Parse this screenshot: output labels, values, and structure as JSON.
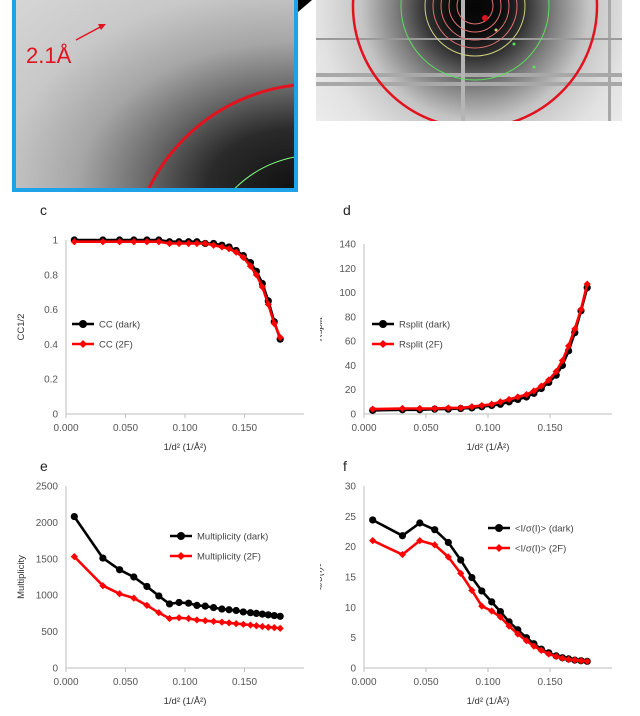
{
  "panel_labels": {
    "c": "c",
    "d": "d",
    "e": "e",
    "f": "f"
  },
  "top_image": {
    "resolution_label": "2.1Å"
  },
  "chart_data": [
    {
      "id": "c",
      "type": "line",
      "title": "",
      "xlabel": "1/d² (1/Å²)",
      "ylabel": "CC1/2",
      "xlim": [
        0,
        0.2
      ],
      "ylim": [
        0,
        1.0
      ],
      "xticks": [
        "0.000",
        "0.050",
        "0.100",
        "0.150"
      ],
      "yticks": [
        "0",
        "0.2",
        "0.4",
        "0.6",
        "0.8",
        "1"
      ],
      "legend_position": "middle-left",
      "series": [
        {
          "name": "CC (dark)",
          "color": "#000000",
          "x": [
            0.007,
            0.031,
            0.045,
            0.057,
            0.068,
            0.078,
            0.087,
            0.095,
            0.103,
            0.11,
            0.117,
            0.124,
            0.131,
            0.137,
            0.143,
            0.149,
            0.155,
            0.16,
            0.165,
            0.17,
            0.175,
            0.18
          ],
          "y": [
            1.0,
            1.0,
            1.0,
            1.0,
            1.0,
            1.0,
            0.99,
            0.99,
            0.99,
            0.99,
            0.98,
            0.98,
            0.97,
            0.96,
            0.94,
            0.91,
            0.87,
            0.82,
            0.75,
            0.65,
            0.53,
            0.43
          ]
        },
        {
          "name": "CC (2F)",
          "color": "#ff0000",
          "x": [
            0.007,
            0.031,
            0.045,
            0.057,
            0.068,
            0.078,
            0.087,
            0.095,
            0.103,
            0.11,
            0.117,
            0.124,
            0.131,
            0.137,
            0.143,
            0.149,
            0.155,
            0.16,
            0.165,
            0.17,
            0.175,
            0.18
          ],
          "y": [
            0.99,
            0.99,
            0.99,
            0.99,
            0.99,
            0.99,
            0.98,
            0.98,
            0.98,
            0.98,
            0.98,
            0.97,
            0.96,
            0.95,
            0.93,
            0.9,
            0.85,
            0.8,
            0.73,
            0.63,
            0.52,
            0.44
          ]
        }
      ]
    },
    {
      "id": "d",
      "type": "line",
      "title": "",
      "xlabel": "1/d² (1/Å²)",
      "ylabel": "Rsplit",
      "xlim": [
        0,
        0.2
      ],
      "ylim": [
        0,
        140
      ],
      "xticks": [
        "0.000",
        "0.050",
        "0.100",
        "0.150"
      ],
      "yticks": [
        "0",
        "20",
        "40",
        "60",
        "80",
        "100",
        "120",
        "140"
      ],
      "legend_position": "middle-left",
      "series": [
        {
          "name": "Rsplit (dark)",
          "color": "#000000",
          "x": [
            0.007,
            0.031,
            0.045,
            0.057,
            0.068,
            0.078,
            0.087,
            0.095,
            0.103,
            0.11,
            0.117,
            0.124,
            0.131,
            0.137,
            0.143,
            0.149,
            0.155,
            0.16,
            0.165,
            0.17,
            0.175,
            0.18
          ],
          "y": [
            3,
            3.5,
            3.5,
            4,
            4,
            4.5,
            5,
            6,
            7,
            8,
            10,
            12,
            14,
            17,
            21,
            26,
            32,
            40,
            52,
            67,
            85,
            104
          ]
        },
        {
          "name": "Rsplit (2F)",
          "color": "#ff0000",
          "x": [
            0.007,
            0.031,
            0.045,
            0.057,
            0.068,
            0.078,
            0.087,
            0.095,
            0.103,
            0.11,
            0.117,
            0.124,
            0.131,
            0.137,
            0.143,
            0.149,
            0.155,
            0.16,
            0.165,
            0.17,
            0.175,
            0.18
          ],
          "y": [
            4,
            4.5,
            4.5,
            4.5,
            5,
            5,
            6,
            7,
            8,
            10,
            12,
            14,
            16,
            19,
            23,
            28,
            35,
            44,
            56,
            70,
            86,
            107
          ]
        }
      ]
    },
    {
      "id": "e",
      "type": "line",
      "title": "",
      "xlabel": "1/d² (1/Å²)",
      "ylabel": "Multiplicity",
      "xlim": [
        0,
        0.2
      ],
      "ylim": [
        0,
        2500
      ],
      "xticks": [
        "0.000",
        "0.050",
        "0.100",
        "0.150"
      ],
      "yticks": [
        "0",
        "500",
        "1000",
        "1500",
        "2000",
        "2500"
      ],
      "legend_position": "top-right",
      "series": [
        {
          "name": "Multiplicity (dark)",
          "color": "#000000",
          "x": [
            0.007,
            0.031,
            0.045,
            0.057,
            0.068,
            0.078,
            0.087,
            0.095,
            0.103,
            0.11,
            0.117,
            0.124,
            0.131,
            0.137,
            0.143,
            0.149,
            0.155,
            0.16,
            0.165,
            0.17,
            0.175,
            0.18
          ],
          "y": [
            2080,
            1510,
            1350,
            1250,
            1120,
            990,
            880,
            900,
            890,
            860,
            850,
            830,
            810,
            800,
            790,
            770,
            760,
            750,
            740,
            730,
            720,
            710
          ]
        },
        {
          "name": "Multiplicity (2F)",
          "color": "#ff0000",
          "x": [
            0.007,
            0.031,
            0.045,
            0.057,
            0.068,
            0.078,
            0.087,
            0.095,
            0.103,
            0.11,
            0.117,
            0.124,
            0.131,
            0.137,
            0.143,
            0.149,
            0.155,
            0.16,
            0.165,
            0.17,
            0.175,
            0.18
          ],
          "y": [
            1530,
            1130,
            1020,
            960,
            860,
            760,
            680,
            690,
            680,
            660,
            650,
            640,
            630,
            620,
            610,
            600,
            590,
            580,
            570,
            560,
            555,
            545
          ]
        }
      ]
    },
    {
      "id": "f",
      "type": "line",
      "title": "",
      "xlabel": "1/d² (1/Å²)",
      "ylabel": "<I/σ(I)>",
      "xlim": [
        0,
        0.2
      ],
      "ylim": [
        0,
        30
      ],
      "xticks": [
        "0.000",
        "0.050",
        "0.100",
        "0.150"
      ],
      "yticks": [
        "0",
        "5",
        "10",
        "15",
        "20",
        "25",
        "30"
      ],
      "legend_position": "top-right",
      "series": [
        {
          "name": "<I/σ(I)> (dark)",
          "color": "#000000",
          "x": [
            0.007,
            0.031,
            0.045,
            0.057,
            0.068,
            0.078,
            0.087,
            0.095,
            0.103,
            0.11,
            0.117,
            0.124,
            0.131,
            0.137,
            0.143,
            0.149,
            0.155,
            0.16,
            0.165,
            0.17,
            0.175,
            0.18
          ],
          "y": [
            24.4,
            21.8,
            23.9,
            22.8,
            20.7,
            17.8,
            14.9,
            12.7,
            10.9,
            9.3,
            7.6,
            6.3,
            5.0,
            4.0,
            3.1,
            2.5,
            2.0,
            1.7,
            1.5,
            1.3,
            1.2,
            1.1
          ]
        },
        {
          "name": "<I/σ(I)> (2F)",
          "color": "#ff0000",
          "x": [
            0.007,
            0.031,
            0.045,
            0.057,
            0.068,
            0.078,
            0.087,
            0.095,
            0.103,
            0.11,
            0.117,
            0.124,
            0.131,
            0.137,
            0.143,
            0.149,
            0.155,
            0.16,
            0.165,
            0.17,
            0.175,
            0.18
          ],
          "y": [
            21.0,
            18.7,
            21.0,
            20.3,
            18.3,
            15.6,
            12.8,
            10.2,
            9.4,
            8.4,
            6.9,
            5.6,
            4.5,
            3.6,
            2.9,
            2.3,
            1.9,
            1.6,
            1.4,
            1.3,
            1.2,
            1.1
          ]
        }
      ]
    }
  ]
}
